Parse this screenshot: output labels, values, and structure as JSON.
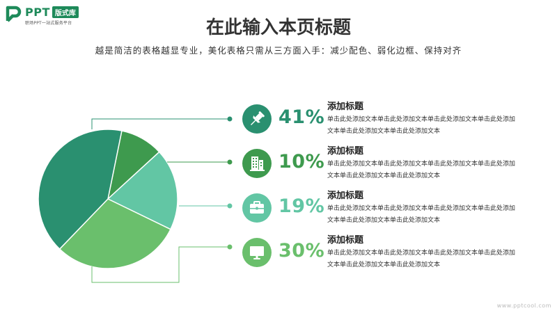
{
  "logo": {
    "brand": "PPT",
    "badge": "版式库",
    "tagline": "职场PPT一站式服务平台"
  },
  "title": "在此输入本页标题",
  "subtitle": "越是简洁的表格越显专业，美化表格只需从三方面入手：减少配色、弱化边框、保持对齐",
  "colors": {
    "dark_green": "#2a9070",
    "mid_green": "#3e9a4e",
    "light_teal": "#62c6a4",
    "soft_green": "#6abf6c"
  },
  "chart_data": {
    "type": "pie",
    "values": [
      41,
      10,
      19,
      30
    ],
    "colors": [
      "#2a9070",
      "#3e9a4e",
      "#62c6a4",
      "#6abf6c"
    ]
  },
  "items": [
    {
      "icon": "pin-icon",
      "percent": "41%",
      "heading": "添加标题",
      "body": "单击此处添加文本单击此处添加文本单击此处添加文本单击此处添加文本单击此处添加文本单击此处添加文本",
      "color": "#2a9070"
    },
    {
      "icon": "building-icon",
      "percent": "10%",
      "heading": "添加标题",
      "body": "单击此处添加文本单击此处添加文本单击此处添加文本单击此处添加文本单击此处添加文本单击此处添加文本",
      "color": "#3e9a4e"
    },
    {
      "icon": "briefcase-icon",
      "percent": "19%",
      "heading": "添加标题",
      "body": "单击此处添加文本单击此处添加文本单击此处添加文本单击此处添加文本单击此处添加文本单击此处添加文本",
      "color": "#62c6a4"
    },
    {
      "icon": "monitor-icon",
      "percent": "30%",
      "heading": "添加标题",
      "body": "单击此处添加文本单击此处添加文本单击此处添加文本单击此处添加文本单击此处添加文本单击此处添加文本",
      "color": "#6abf6c"
    }
  ],
  "footer": "www.pptcool.com"
}
